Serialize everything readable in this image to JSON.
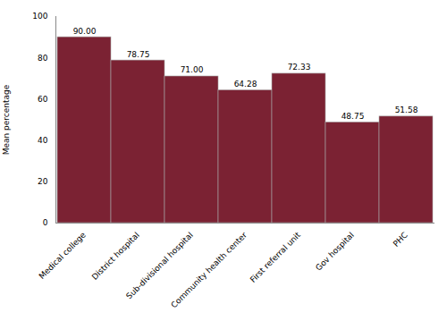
{
  "chart_data": {
    "type": "bar",
    "categories": [
      "Medical college",
      "District hospital",
      "Sub-divisional hospital",
      "Community health center",
      "First referral unit",
      "Gov hospital",
      "PHC"
    ],
    "values": [
      90.0,
      78.75,
      71.0,
      64.28,
      72.33,
      48.75,
      51.58
    ],
    "value_labels": [
      "90.00",
      "78.75",
      "71.00",
      "64.28",
      "72.33",
      "48.75",
      "51.58"
    ],
    "data_labels": true,
    "color": "#7B2233",
    "ylabel": "Mean percentage",
    "ylim": [
      0,
      100
    ],
    "yticks": [
      0,
      20,
      40,
      60,
      80,
      100
    ],
    "grid": true
  }
}
